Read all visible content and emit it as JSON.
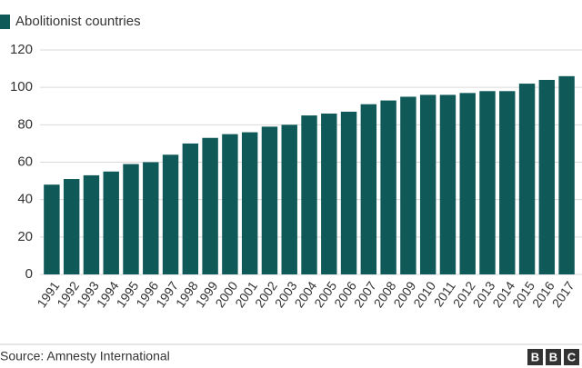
{
  "chart_data": {
    "type": "bar",
    "series": [
      {
        "name": "Abolitionist countries",
        "color": "#0f5a58",
        "values": [
          48,
          51,
          53,
          55,
          59,
          60,
          64,
          70,
          73,
          75,
          76,
          79,
          80,
          85,
          86,
          87,
          91,
          93,
          95,
          96,
          96,
          97,
          98,
          98,
          102,
          104,
          106
        ]
      }
    ],
    "categories": [
      "1991",
      "1992",
      "1993",
      "1994",
      "1995",
      "1996",
      "1997",
      "1998",
      "1999",
      "2000",
      "2001",
      "2002",
      "2003",
      "2004",
      "2005",
      "2006",
      "2007",
      "2008",
      "2009",
      "2010",
      "2011",
      "2012",
      "2013",
      "2014",
      "2015",
      "2016",
      "2017"
    ],
    "ylim": [
      0,
      120
    ],
    "yticks": [
      0,
      20,
      40,
      60,
      80,
      100,
      120
    ],
    "grid": true,
    "source": "Source: Amnesty International",
    "logo": [
      "B",
      "B",
      "C"
    ]
  }
}
